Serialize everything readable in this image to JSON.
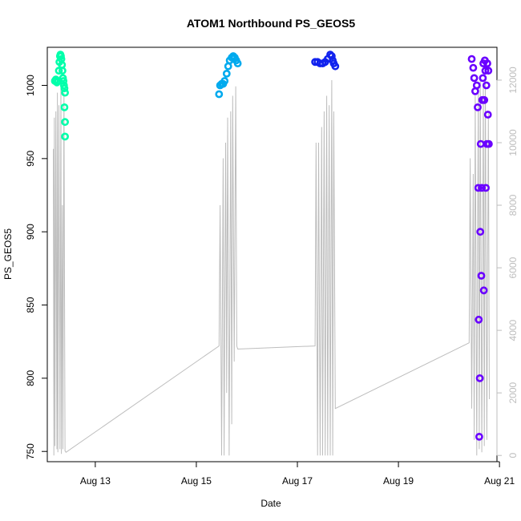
{
  "chart_data": {
    "type": "scatter",
    "title": "ATOM1 Northbound PS_GEOS5",
    "xlabel": "Date",
    "ylabel": "PS_GEOS5",
    "x_ticks": [
      "Aug 13",
      "Aug 15",
      "Aug 17",
      "Aug 19",
      "Aug 21"
    ],
    "x_tick_days": [
      13,
      15,
      17,
      19,
      21
    ],
    "xlim": [
      12.05,
      20.95
    ],
    "y_ticks": [
      750,
      800,
      850,
      900,
      950,
      1000
    ],
    "ylim": [
      743,
      1026
    ],
    "y2_ticks": [
      0,
      2000,
      4000,
      6000,
      8000,
      10000,
      12000
    ],
    "y2lim": [
      -200,
      13050
    ],
    "grid": false,
    "legend": "none",
    "colors": {
      "seg1": "#00ffaa",
      "seg2": "#00aaee",
      "seg3": "#1122ee",
      "seg4": "#6a00ff",
      "altitude": "#bdbdbd"
    },
    "series": [
      {
        "color_key": "seg1",
        "x": [
          12.2,
          12.22,
          12.24,
          12.26,
          12.28,
          12.29,
          12.3,
          12.31,
          12.32,
          12.33,
          12.34,
          12.35,
          12.36,
          12.37,
          12.38,
          12.39,
          12.39,
          12.4,
          12.4,
          12.4
        ],
        "y": [
          1003,
          1004,
          1002,
          1003,
          1010,
          1016,
          1020,
          1021,
          1020,
          1018,
          1014,
          1010,
          1005,
          1003,
          1000,
          998,
          985,
          975,
          965,
          995
        ]
      },
      {
        "color_key": "seg2",
        "x": [
          15.45,
          15.47,
          15.5,
          15.53,
          15.56,
          15.6,
          15.63,
          15.66,
          15.7,
          15.73,
          15.76,
          15.79,
          15.82
        ],
        "y": [
          994,
          1000,
          1001,
          1001,
          1003,
          1008,
          1013,
          1017,
          1019,
          1020,
          1019,
          1017,
          1015
        ]
      },
      {
        "color_key": "seg3",
        "x": [
          17.35,
          17.4,
          17.45,
          17.5,
          17.55,
          17.6,
          17.65,
          17.68,
          17.7,
          17.72,
          17.75
        ],
        "y": [
          1016,
          1016,
          1015,
          1015,
          1016,
          1018,
          1021,
          1020,
          1017,
          1015,
          1013
        ]
      },
      {
        "color_key": "seg4",
        "x": [
          20.45,
          20.48,
          20.5,
          20.52,
          20.55,
          20.57,
          20.58,
          20.59,
          20.6,
          20.61,
          20.62,
          20.63,
          20.64,
          20.65,
          20.66,
          20.67,
          20.68,
          20.69,
          20.7,
          20.71,
          20.72,
          20.73,
          20.74,
          20.75,
          20.76,
          20.77,
          20.78,
          20.79
        ],
        "y": [
          1018,
          1012,
          1005,
          996,
          1000,
          985,
          930,
          840,
          760,
          800,
          900,
          960,
          870,
          930,
          990,
          1005,
          1015,
          860,
          990,
          1017,
          1010,
          930,
          1000,
          960,
          1015,
          980,
          1010,
          960
        ]
      }
    ],
    "altitude_series": {
      "axis": "right",
      "x": [
        12.17,
        12.18,
        12.19,
        12.2,
        12.22,
        12.24,
        12.25,
        12.26,
        12.28,
        12.3,
        12.32,
        12.33,
        12.35,
        12.36,
        12.38,
        12.4,
        12.42,
        15.45,
        15.47,
        15.5,
        15.53,
        15.55,
        15.58,
        15.6,
        15.62,
        15.65,
        15.68,
        15.7,
        15.72,
        15.75,
        15.78,
        15.8,
        15.82,
        17.35,
        17.37,
        17.4,
        17.42,
        17.45,
        17.48,
        17.5,
        17.53,
        17.55,
        17.58,
        17.6,
        17.63,
        17.65,
        17.68,
        17.7,
        17.72,
        17.75,
        20.4,
        20.42,
        20.45,
        20.48,
        20.5,
        20.52,
        20.55,
        20.58,
        20.6,
        20.62,
        20.65,
        20.68,
        20.7,
        20.72,
        20.75,
        20.78,
        20.8
      ],
      "y": [
        9800,
        0,
        10800,
        300,
        11000,
        200,
        11600,
        100,
        11200,
        200,
        11900,
        50,
        8000,
        200,
        11600,
        150,
        100,
        3500,
        8000,
        0,
        9500,
        0,
        10000,
        2000,
        10800,
        0,
        11000,
        1000,
        11500,
        3000,
        11800,
        3500,
        3400,
        3500,
        10000,
        0,
        10000,
        0,
        10500,
        0,
        11000,
        0,
        11500,
        0,
        11200,
        0,
        12000,
        0,
        11000,
        1500,
        3600,
        9500,
        1500,
        9000,
        500,
        11500,
        0,
        11800,
        200,
        12000,
        100,
        11800,
        300,
        12000,
        500,
        11000,
        1800
      ]
    }
  }
}
